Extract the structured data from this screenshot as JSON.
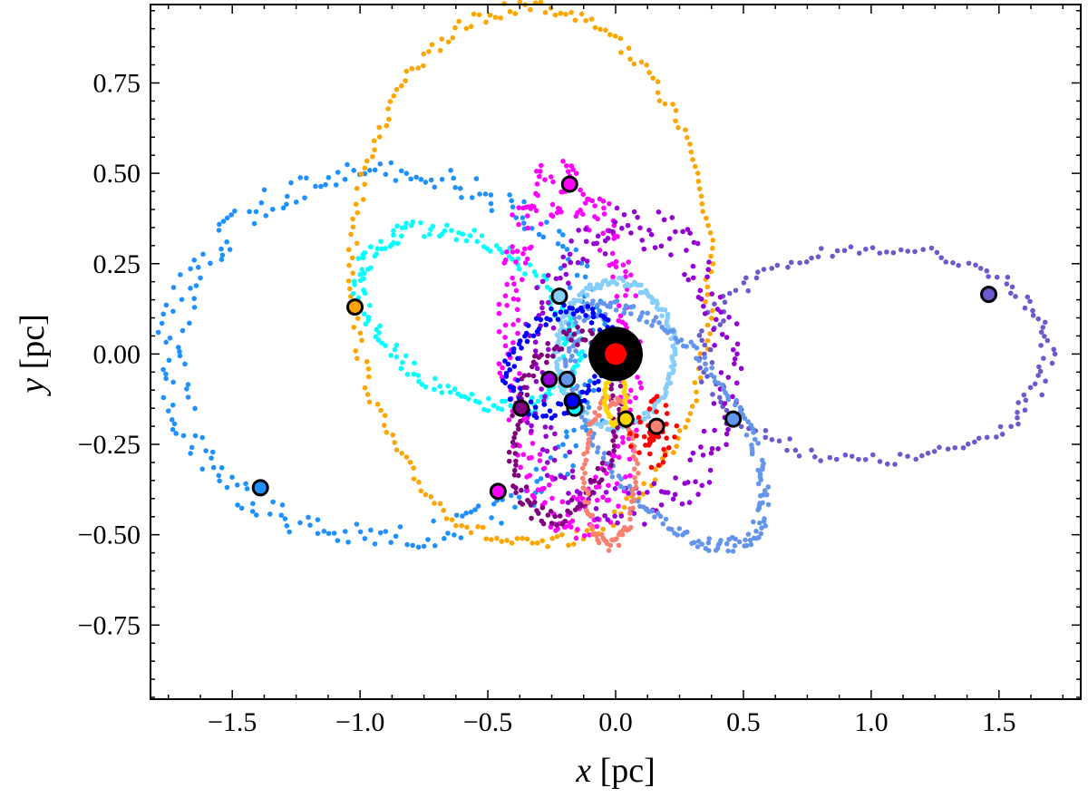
{
  "chart_data": {
    "type": "scatter",
    "title": "",
    "xlabel_var": "x",
    "xlabel_unit": " [pc]",
    "ylabel_var": "y",
    "ylabel_unit": " [pc]",
    "xlim": [
      -1.82,
      1.82
    ],
    "ylim": [
      -0.955,
      0.967
    ],
    "xticks": [
      -1.5,
      -1.0,
      -0.5,
      0.0,
      0.5,
      1.0,
      1.5
    ],
    "xtick_labels": [
      "−1.5",
      "−1.0",
      "−0.5",
      "0.0",
      "0.5",
      "1.0",
      "1.5"
    ],
    "yticks": [
      0.75,
      0.5,
      0.25,
      0.0,
      -0.25,
      -0.5,
      -0.75
    ],
    "ytick_labels": [
      "0.75",
      "0.50",
      "0.25",
      "0.00",
      "−0.25",
      "−0.50",
      "−0.75"
    ],
    "grid": false,
    "central_object": {
      "x": 0.0,
      "y": 0.0,
      "outer_color": "#000000",
      "inner_color": "#ff0000"
    },
    "orbits": [
      {
        "name": "orbit-dodgerblue",
        "color": "#1e90ff",
        "cx": -0.9,
        "cy": -0.005,
        "a": 0.84,
        "b": 0.505,
        "rot": 0,
        "n": 260,
        "spread": 0.03,
        "markers": [
          [
            -1.39,
            -0.37
          ]
        ]
      },
      {
        "name": "orbit-orange",
        "color": "#ffa500",
        "cx": -0.33,
        "cy": 0.215,
        "a": 0.7,
        "b": 0.745,
        "rot": 8,
        "n": 220,
        "spread": 0.01,
        "markers": [
          [
            -1.02,
            0.13
          ]
        ]
      },
      {
        "name": "orbit-slateblue",
        "color": "#6a5acd",
        "cx": 1.02,
        "cy": 0.0,
        "a": 0.67,
        "b": 0.295,
        "rot": 0,
        "n": 150,
        "spread": 0.02,
        "markers": [
          [
            1.46,
            0.165
          ]
        ]
      },
      {
        "name": "orbit-cyan",
        "color": "#00ffff",
        "cx": -0.58,
        "cy": 0.1,
        "a": 0.43,
        "b": 0.22,
        "rot": -18,
        "n": 180,
        "spread": 0.02,
        "markers": [
          [
            -0.16,
            -0.15
          ]
        ]
      },
      {
        "name": "orbit-magenta",
        "color": "#ff00ff",
        "cx": -0.18,
        "cy": 0.01,
        "a": 0.24,
        "b": 0.46,
        "rot": 5,
        "n": 260,
        "spread": 0.04,
        "markers": [
          [
            -0.18,
            0.47
          ],
          [
            -0.46,
            -0.38
          ]
        ]
      },
      {
        "name": "orbit-darkviolet",
        "color": "#9400d3",
        "cx": 0.06,
        "cy": -0.04,
        "a": 0.38,
        "b": 0.39,
        "rot": 0,
        "n": 200,
        "spread": 0.03,
        "markers": [
          [
            -0.26,
            -0.07
          ]
        ]
      },
      {
        "name": "orbit-lightskyblue",
        "color": "#87cefa",
        "cx": 0.0,
        "cy": 0.0,
        "a": 0.23,
        "b": 0.2,
        "rot": 0,
        "n": 170,
        "spread": 0.006,
        "markers": [
          [
            -0.22,
            0.16
          ]
        ]
      },
      {
        "name": "orbit-cornflowerblue",
        "color": "#6495ed",
        "cx": 0.2,
        "cy": -0.2,
        "a": 0.45,
        "b": 0.23,
        "rot": -38,
        "n": 220,
        "spread": 0.015,
        "markers": [
          [
            0.46,
            -0.18
          ],
          [
            -0.19,
            -0.07
          ]
        ]
      },
      {
        "name": "orbit-blue",
        "color": "#0000ff",
        "cx": -0.22,
        "cy": -0.02,
        "a": 0.2,
        "b": 0.13,
        "rot": 20,
        "n": 110,
        "spread": 0.015,
        "markers": [
          [
            -0.17,
            -0.13
          ]
        ]
      },
      {
        "name": "orbit-purple",
        "color": "#800080",
        "cx": -0.2,
        "cy": -0.2,
        "a": 0.26,
        "b": 0.19,
        "rot": 65,
        "n": 130,
        "spread": 0.015,
        "markers": [
          [
            -0.37,
            -0.15
          ]
        ]
      },
      {
        "name": "orbit-salmon",
        "color": "#fa8072",
        "cx": -0.02,
        "cy": -0.33,
        "a": 0.1,
        "b": 0.2,
        "rot": 0,
        "n": 100,
        "spread": 0.01,
        "markers": [
          [
            0.16,
            -0.2
          ]
        ]
      },
      {
        "name": "orbit-red",
        "color": "#ff0000",
        "cx": 0.14,
        "cy": -0.22,
        "a": 0.05,
        "b": 0.05,
        "rot": 0,
        "n": 60,
        "spread": 0.03,
        "markers": []
      },
      {
        "name": "orbit-gold",
        "color": "#ffd700",
        "cx": 0.0,
        "cy": -0.12,
        "a": 0.04,
        "b": 0.07,
        "rot": 0,
        "n": 50,
        "spread": 0.005,
        "markers": [
          [
            0.04,
            -0.18
          ]
        ]
      }
    ]
  }
}
